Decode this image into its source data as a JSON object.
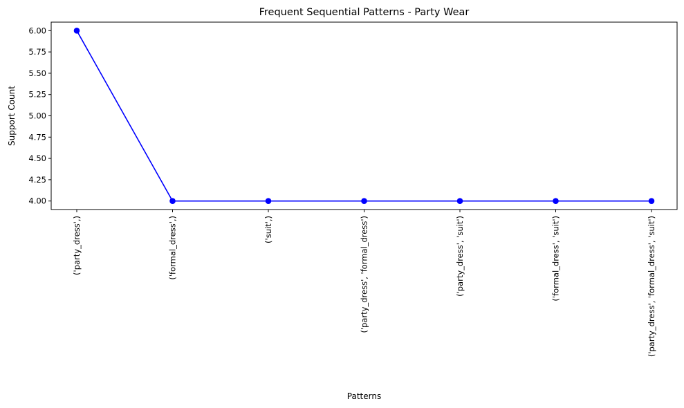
{
  "chart_data": {
    "type": "line",
    "title": "Frequent Sequential Patterns - Party Wear",
    "xlabel": "Patterns",
    "ylabel": "Support Count",
    "categories": [
      "('party_dress',)",
      "('formal_dress',)",
      "('suit',)",
      "('party_dress', 'formal_dress')",
      "('party_dress', 'suit')",
      "('formal_dress', 'suit')",
      "('party_dress', 'formal_dress', 'suit')"
    ],
    "series": [
      {
        "values": [
          6,
          4,
          4,
          4,
          4,
          4,
          4
        ],
        "color": "#0000ff",
        "marker": "circle"
      }
    ],
    "yticks": [
      "4.00",
      "4.25",
      "4.50",
      "4.75",
      "5.00",
      "5.25",
      "5.50",
      "5.75",
      "6.00"
    ],
    "ylim": [
      3.9,
      6.1
    ],
    "grid": false,
    "legend": false
  }
}
